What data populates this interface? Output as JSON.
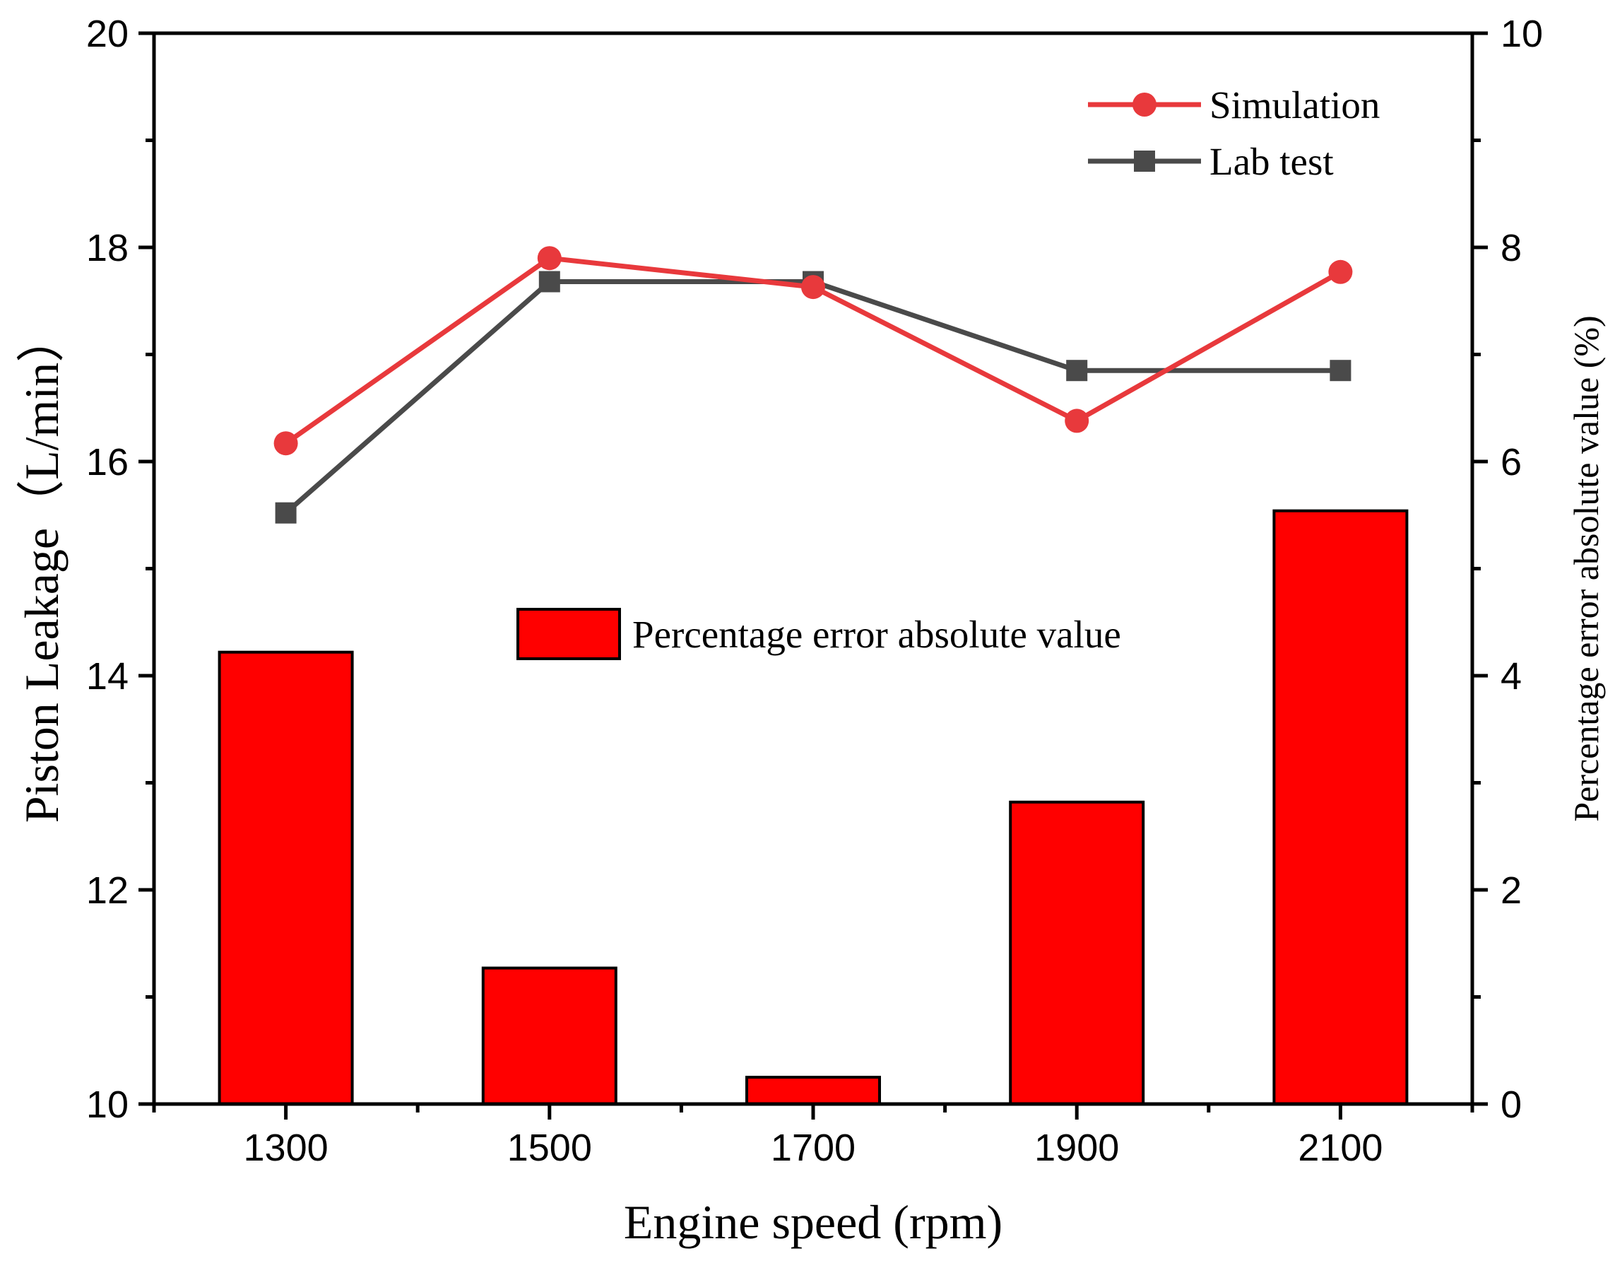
{
  "chart_data": {
    "type": "bar+line",
    "title": "",
    "xlabel": "Engine speed (rpm)",
    "ylabel": "Piston Leakage（L/min）",
    "ylabel_right": "Percentage error absolute value (%)",
    "categories": [
      "1300",
      "1500",
      "1700",
      "1900",
      "2100"
    ],
    "ylim": [
      10,
      20
    ],
    "ylim_right": [
      0,
      10
    ],
    "yticks": [
      "10",
      "12",
      "14",
      "16",
      "18",
      "20"
    ],
    "yticks_right": [
      "0",
      "2",
      "4",
      "6",
      "8",
      "10"
    ],
    "series": [
      {
        "name": "Percentage error absolute value",
        "type": "bar",
        "axis": "right",
        "color": "#ff0000",
        "values": [
          4.22,
          1.27,
          0.25,
          2.82,
          5.54
        ]
      },
      {
        "name": "Simulation",
        "type": "line",
        "axis": "left",
        "marker": "circle",
        "color": "#e8393c",
        "values": [
          16.17,
          17.9,
          17.63,
          16.38,
          17.77
        ]
      },
      {
        "name": "Lab test",
        "type": "line",
        "axis": "left",
        "marker": "square",
        "color": "#4a4a4a",
        "values": [
          15.52,
          17.68,
          17.68,
          16.85,
          16.85
        ]
      }
    ],
    "legend": {
      "lines": [
        "Simulation",
        "Lab test"
      ],
      "lines_position": "top-right",
      "bar": "Percentage error absolute value",
      "bar_position": "center"
    }
  }
}
